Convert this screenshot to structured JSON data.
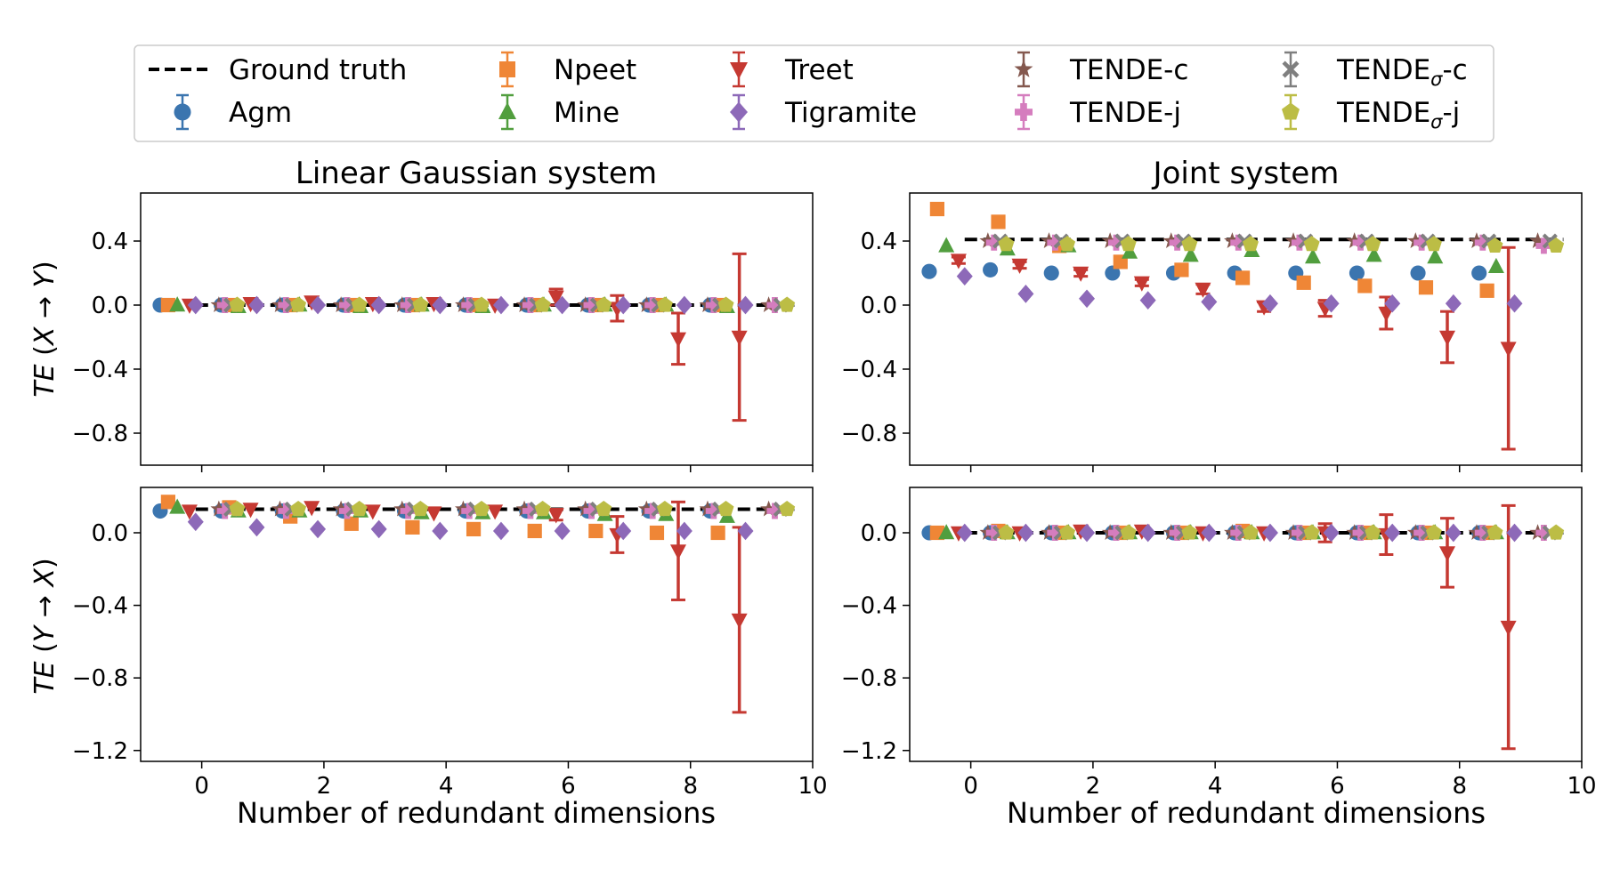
{
  "legend": {
    "entries": [
      {
        "id": "gt",
        "label": "Ground truth",
        "marker": "dash",
        "color": "#000000"
      },
      {
        "id": "agm",
        "label": "Agm",
        "marker": "circle",
        "color": "#3b75af"
      },
      {
        "id": "npeet",
        "label": "Npeet",
        "marker": "square",
        "color": "#ef8636"
      },
      {
        "id": "mine",
        "label": "Mine",
        "marker": "triangle-up",
        "color": "#519e3e"
      },
      {
        "id": "treet",
        "label": "Treet",
        "marker": "triangle-down",
        "color": "#c53932"
      },
      {
        "id": "tigramite",
        "label": "Tigramite",
        "marker": "diamond",
        "color": "#8d69b8"
      },
      {
        "id": "tende_c",
        "label": "TENDE-c",
        "marker": "star",
        "color": "#84584e"
      },
      {
        "id": "tende_j",
        "label": "TENDE-j",
        "marker": "plus",
        "color": "#d57dbe"
      },
      {
        "id": "tende_sc",
        "label": "TENDE",
        "label_sub": "σ",
        "label_suffix": "-c",
        "marker": "x",
        "color": "#7f7f7f"
      },
      {
        "id": "tende_sj",
        "label": "TENDE",
        "label_sub": "σ",
        "label_suffix": "-j",
        "marker": "pentagon",
        "color": "#bcbd45"
      }
    ]
  },
  "columns": {
    "left_title": "Linear Gaussian system",
    "right_title": "Joint system",
    "xlabel": "Number of redundant dimensions"
  },
  "rows": {
    "top_ylabel": "TE (X → Y)",
    "bottom_ylabel": "TE (Y → X)"
  },
  "chart_data": [
    {
      "id": "lg_xy",
      "type": "scatter",
      "title": "Linear Gaussian system",
      "xlabel": "",
      "ylabel": "TE (X → Y)",
      "xlim": [
        -1,
        10
      ],
      "ylim": [
        -1.0,
        0.7
      ],
      "xticks": [
        0,
        2,
        4,
        6,
        8,
        10
      ],
      "yticks": [
        0.4,
        0.0,
        -0.4,
        -0.8
      ],
      "x": [
        0,
        1,
        2,
        3,
        4,
        5,
        6,
        7,
        8,
        9
      ],
      "ground_truth": 0.0,
      "series": [
        {
          "name": "Agm",
          "values": [
            0,
            0,
            0,
            0,
            0,
            0,
            0,
            0,
            0,
            0
          ]
        },
        {
          "name": "Npeet",
          "values": [
            0,
            0,
            0,
            0,
            0,
            0,
            0,
            0,
            0,
            0
          ]
        },
        {
          "name": "Mine",
          "values": [
            0,
            -0.01,
            0,
            -0.01,
            0,
            -0.01,
            0,
            0,
            0,
            -0.01
          ]
        },
        {
          "name": "Treet",
          "values": [
            0,
            0.01,
            0.02,
            0.01,
            0.01,
            0,
            0.05,
            -0.02,
            -0.21,
            -0.2
          ],
          "errors": [
            0,
            0,
            0,
            0,
            0,
            0,
            0.05,
            0.08,
            0.16,
            0.52
          ]
        },
        {
          "name": "Tigramite",
          "values": [
            0,
            0,
            0,
            0,
            0,
            0,
            0,
            0,
            0,
            0
          ]
        },
        {
          "name": "TENDE-c",
          "values": [
            0,
            0,
            0,
            0,
            0,
            0,
            0,
            0,
            0,
            0
          ]
        },
        {
          "name": "TENDE-j",
          "values": [
            0,
            0,
            0,
            0,
            0,
            0,
            0,
            0,
            0,
            0
          ]
        },
        {
          "name": "TENDEσ-c",
          "values": [
            0,
            0,
            0,
            0,
            0,
            0,
            0,
            0,
            0,
            0
          ]
        },
        {
          "name": "TENDEσ-j",
          "values": [
            0,
            0,
            0,
            0,
            0,
            0,
            0,
            0,
            0,
            0
          ]
        }
      ]
    },
    {
      "id": "j_xy",
      "type": "scatter",
      "title": "Joint system",
      "xlabel": "",
      "ylabel": "",
      "xlim": [
        -1,
        10
      ],
      "ylim": [
        -1.0,
        0.7
      ],
      "xticks": [
        0,
        2,
        4,
        6,
        8,
        10
      ],
      "yticks": [
        0.4,
        0.0,
        -0.4,
        -0.8
      ],
      "x": [
        0,
        1,
        2,
        3,
        4,
        5,
        6,
        7,
        8,
        9
      ],
      "ground_truth": 0.41,
      "series": [
        {
          "name": "Agm",
          "values": [
            0.21,
            0.22,
            0.2,
            0.2,
            0.2,
            0.2,
            0.2,
            0.2,
            0.2,
            0.2
          ]
        },
        {
          "name": "Npeet",
          "values": [
            0.6,
            0.52,
            0.37,
            0.27,
            0.22,
            0.17,
            0.14,
            0.12,
            0.11,
            0.09
          ]
        },
        {
          "name": "Mine",
          "values": [
            0.37,
            0.35,
            0.37,
            0.33,
            0.31,
            0.34,
            0.3,
            0.31,
            0.3,
            0.24
          ]
        },
        {
          "name": "Treet",
          "values": [
            0.28,
            0.25,
            0.2,
            0.14,
            0.1,
            -0.01,
            -0.02,
            -0.05,
            -0.2,
            -0.27
          ],
          "errors": [
            0.02,
            0.02,
            0.02,
            0.02,
            0.03,
            0.03,
            0.05,
            0.1,
            0.16,
            0.63
          ]
        },
        {
          "name": "Tigramite",
          "values": [
            0.18,
            0.07,
            0.04,
            0.03,
            0.02,
            0.01,
            0.01,
            0.01,
            0.01,
            0.01
          ]
        },
        {
          "name": "TENDE-c",
          "values": [
            0.4,
            0.4,
            0.4,
            0.4,
            0.4,
            0.4,
            0.4,
            0.4,
            0.4,
            0.4
          ]
        },
        {
          "name": "TENDE-j",
          "values": [
            0.39,
            0.39,
            0.39,
            0.39,
            0.39,
            0.39,
            0.39,
            0.39,
            0.39,
            0.37
          ]
        },
        {
          "name": "TENDEσ-c",
          "values": [
            0.4,
            0.4,
            0.4,
            0.4,
            0.4,
            0.4,
            0.4,
            0.4,
            0.4,
            0.4
          ]
        },
        {
          "name": "TENDEσ-j",
          "values": [
            0.38,
            0.38,
            0.38,
            0.38,
            0.38,
            0.38,
            0.38,
            0.38,
            0.37,
            0.37
          ]
        }
      ]
    },
    {
      "id": "lg_yx",
      "type": "scatter",
      "title": "",
      "xlabel": "Number of redundant dimensions",
      "ylabel": "TE (Y → X)",
      "xlim": [
        -1,
        10
      ],
      "ylim": [
        -1.26,
        0.25
      ],
      "xticks": [
        0,
        2,
        4,
        6,
        8,
        10
      ],
      "yticks": [
        0.0,
        -0.4,
        -0.8,
        -1.2
      ],
      "x": [
        0,
        1,
        2,
        3,
        4,
        5,
        6,
        7,
        8,
        9
      ],
      "ground_truth": 0.13,
      "series": [
        {
          "name": "Agm",
          "values": [
            0.12,
            0.12,
            0.12,
            0.12,
            0.12,
            0.12,
            0.12,
            0.12,
            0.12,
            0.12
          ]
        },
        {
          "name": "Npeet",
          "values": [
            0.17,
            0.14,
            0.09,
            0.05,
            0.03,
            0.02,
            0.01,
            0.01,
            0,
            0
          ]
        },
        {
          "name": "Mine",
          "values": [
            0.14,
            0.12,
            0.12,
            0.12,
            0.11,
            0.11,
            0.11,
            0.1,
            0.1,
            0.09
          ]
        },
        {
          "name": "Treet",
          "values": [
            0.12,
            0.13,
            0.14,
            0.12,
            0.11,
            0.12,
            0.1,
            -0.01,
            -0.1,
            -0.48
          ],
          "errors": [
            0,
            0,
            0,
            0,
            0,
            0,
            0.03,
            0.1,
            0.27,
            0.51
          ]
        },
        {
          "name": "Tigramite",
          "values": [
            0.06,
            0.03,
            0.02,
            0.02,
            0.01,
            0.01,
            0.01,
            0.01,
            0.01,
            0.01
          ]
        },
        {
          "name": "TENDE-c",
          "values": [
            0.13,
            0.13,
            0.13,
            0.13,
            0.13,
            0.13,
            0.13,
            0.13,
            0.13,
            0.13
          ]
        },
        {
          "name": "TENDE-j",
          "values": [
            0.12,
            0.12,
            0.12,
            0.12,
            0.12,
            0.12,
            0.12,
            0.12,
            0.12,
            0.12
          ]
        },
        {
          "name": "TENDEσ-c",
          "values": [
            0.13,
            0.13,
            0.13,
            0.13,
            0.13,
            0.13,
            0.13,
            0.13,
            0.13,
            0.13
          ]
        },
        {
          "name": "TENDEσ-j",
          "values": [
            0.13,
            0.13,
            0.13,
            0.13,
            0.13,
            0.13,
            0.13,
            0.13,
            0.13,
            0.13
          ]
        }
      ]
    },
    {
      "id": "j_yx",
      "type": "scatter",
      "title": "",
      "xlabel": "Number of redundant dimensions",
      "ylabel": "",
      "xlim": [
        -1,
        10
      ],
      "ylim": [
        -1.26,
        0.25
      ],
      "xticks": [
        0,
        2,
        4,
        6,
        8,
        10
      ],
      "yticks": [
        0.0,
        -0.4,
        -0.8,
        -1.2
      ],
      "x": [
        0,
        1,
        2,
        3,
        4,
        5,
        6,
        7,
        8,
        9
      ],
      "ground_truth": 0.0,
      "series": [
        {
          "name": "Agm",
          "values": [
            0,
            0,
            0,
            0,
            0,
            0,
            0,
            0,
            0,
            0
          ]
        },
        {
          "name": "Npeet",
          "values": [
            0,
            0.01,
            0,
            0,
            0,
            0.01,
            0,
            0,
            0,
            0
          ]
        },
        {
          "name": "Mine",
          "values": [
            0,
            0,
            0,
            0,
            0,
            0,
            0,
            0,
            0,
            0
          ]
        },
        {
          "name": "Treet",
          "values": [
            0,
            0,
            0.01,
            0.01,
            0,
            0,
            0,
            -0.01,
            -0.11,
            -0.52
          ],
          "errors": [
            0,
            0,
            0,
            0,
            0,
            0,
            0.05,
            0.11,
            0.19,
            0.67
          ]
        },
        {
          "name": "Tigramite",
          "values": [
            0,
            0,
            0,
            0,
            0,
            0,
            0,
            0,
            0,
            0
          ]
        },
        {
          "name": "TENDE-c",
          "values": [
            0,
            0,
            0,
            0,
            0,
            0,
            0,
            0,
            0,
            0
          ]
        },
        {
          "name": "TENDE-j",
          "values": [
            0,
            0,
            0,
            0,
            0,
            0,
            0,
            0,
            0,
            0
          ]
        },
        {
          "name": "TENDEσ-c",
          "values": [
            0,
            0,
            0,
            0,
            0,
            0,
            0,
            0,
            0,
            0
          ]
        },
        {
          "name": "TENDEσ-j",
          "values": [
            0,
            0,
            0,
            0,
            0,
            0,
            0,
            0,
            0,
            0
          ]
        }
      ]
    }
  ]
}
